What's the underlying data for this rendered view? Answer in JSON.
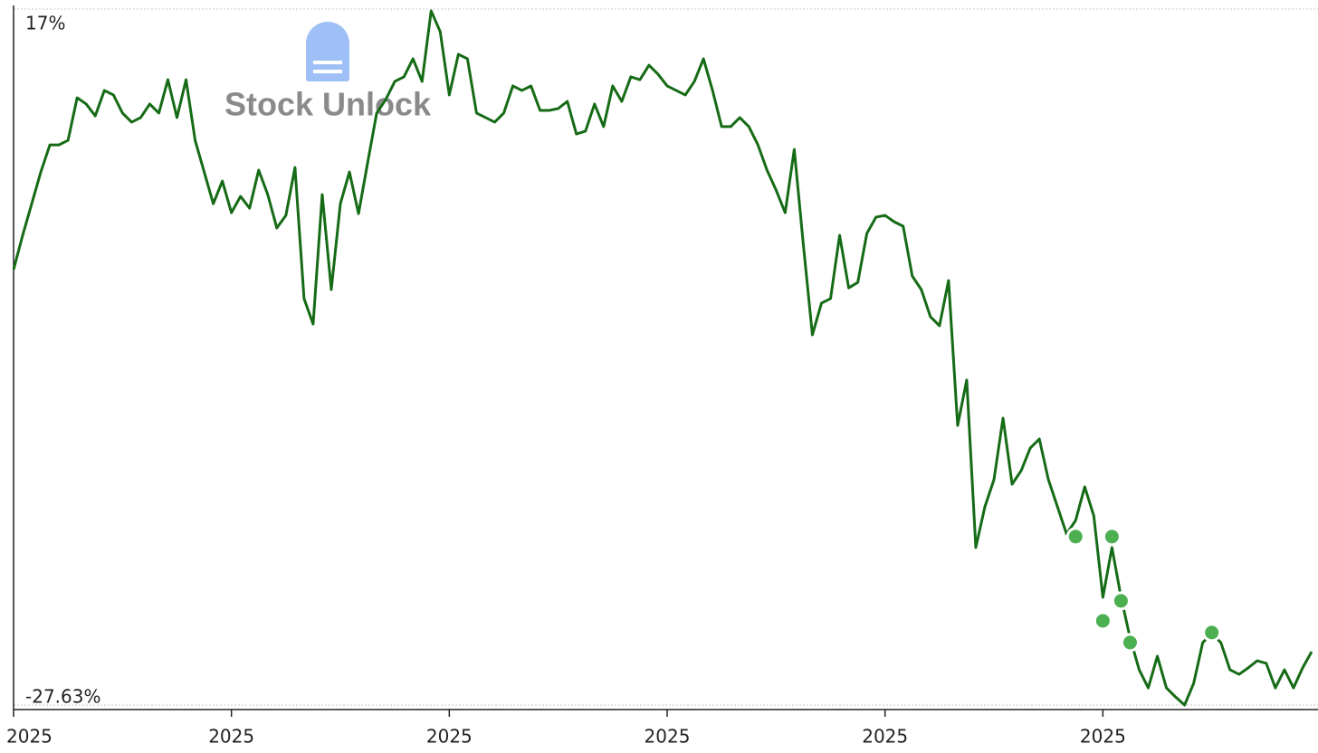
{
  "chart_data": {
    "type": "line",
    "watermark": "Stock Unlock",
    "color": "#166b16",
    "ylim": [
      -27.63,
      17
    ],
    "yticks": [
      {
        "value": 17,
        "label": "17%"
      },
      {
        "value": -27.63,
        "label": "-27.63%"
      }
    ],
    "categories": [
      "2025",
      null,
      null,
      null,
      null,
      null,
      null,
      null,
      null,
      null,
      null,
      null,
      null,
      null,
      null,
      null,
      null,
      null,
      null,
      null,
      null,
      null,
      null,
      null,
      "2025",
      null,
      null,
      null,
      null,
      null,
      null,
      null,
      null,
      null,
      null,
      null,
      null,
      null,
      null,
      null,
      null,
      null,
      null,
      null,
      null,
      null,
      null,
      null,
      "2025",
      null,
      null,
      null,
      null,
      null,
      null,
      null,
      null,
      null,
      null,
      null,
      null,
      null,
      null,
      null,
      null,
      null,
      null,
      null,
      null,
      null,
      null,
      null,
      "2025",
      null,
      null,
      null,
      null,
      null,
      null,
      null,
      null,
      null,
      null,
      null,
      null,
      null,
      null,
      null,
      null,
      null,
      null,
      null,
      null,
      null,
      null,
      null,
      "2025",
      null,
      null,
      null,
      null,
      null,
      null,
      null,
      null,
      null,
      null,
      null,
      null,
      null,
      null,
      null,
      null,
      null,
      null,
      null,
      null,
      null,
      null,
      null,
      "2025",
      null,
      null,
      null,
      null,
      null,
      null,
      null,
      null,
      null,
      null,
      null,
      null,
      null,
      null,
      null,
      null,
      null,
      null,
      null,
      null,
      null,
      null,
      null
    ],
    "values": [
      0.29,
      2.49,
      4.52,
      6.55,
      8.29,
      8.29,
      8.58,
      11.31,
      10.91,
      10.15,
      11.78,
      11.49,
      10.33,
      9.75,
      10.04,
      10.91,
      10.33,
      12.47,
      10.04,
      12.47,
      8.58,
      6.55,
      4.52,
      5.97,
      3.94,
      4.99,
      4.23,
      6.67,
      5.1,
      2.96,
      3.77,
      6.84,
      -1.57,
      -3.2,
      5.1,
      -0.99,
      4.52,
      6.55,
      3.88,
      7.13,
      10.33,
      11.2,
      12.36,
      12.65,
      13.81,
      12.36,
      16.88,
      15.55,
      11.49,
      14.1,
      13.81,
      10.33,
      10.04,
      9.75,
      10.33,
      12.07,
      11.78,
      12.07,
      10.5,
      10.5,
      10.62,
      11.08,
      8.99,
      9.17,
      10.91,
      9.46,
      12.07,
      11.08,
      12.65,
      12.47,
      13.4,
      12.82,
      12.07,
      11.78,
      11.49,
      12.36,
      13.81,
      11.78,
      9.46,
      9.46,
      10.04,
      9.46,
      8.29,
      6.67,
      5.39,
      3.94,
      8.0,
      1.91,
      -3.89,
      -1.86,
      -1.57,
      2.49,
      -0.88,
      -0.53,
      2.61,
      3.65,
      3.77,
      3.36,
      3.07,
      -0.12,
      -0.99,
      -2.73,
      -3.31,
      -0.41,
      -9.7,
      -6.79,
      -17.53,
      -14.92,
      -13.18,
      -9.23,
      -13.47,
      -12.6,
      -11.15,
      -10.57,
      -13.18,
      -14.92,
      -16.66,
      -15.79,
      -13.64,
      -15.5,
      -20.72,
      -17.53,
      -20.72,
      -23.33,
      -25.37,
      -26.53,
      -24.5,
      -26.53,
      -27.11,
      -27.63,
      -26.24,
      -23.63,
      -23.04,
      -23.63,
      -25.37,
      -25.66,
      -25.25,
      -24.79,
      -24.96,
      -26.53,
      -25.37,
      -26.53,
      -25.25,
      -24.21
    ],
    "markers": {
      "color": "#4caf50",
      "values": [
        null,
        null,
        null,
        null,
        null,
        null,
        null,
        null,
        null,
        null,
        null,
        null,
        null,
        null,
        null,
        null,
        null,
        null,
        null,
        null,
        null,
        null,
        null,
        null,
        null,
        null,
        null,
        null,
        null,
        null,
        null,
        null,
        null,
        null,
        null,
        null,
        null,
        null,
        null,
        null,
        null,
        null,
        null,
        null,
        null,
        null,
        null,
        null,
        null,
        null,
        null,
        null,
        null,
        null,
        null,
        null,
        null,
        null,
        null,
        null,
        null,
        null,
        null,
        null,
        null,
        null,
        null,
        null,
        null,
        null,
        null,
        null,
        null,
        null,
        null,
        null,
        null,
        null,
        null,
        null,
        null,
        null,
        null,
        null,
        null,
        null,
        null,
        null,
        null,
        null,
        null,
        null,
        null,
        null,
        null,
        null,
        null,
        null,
        null,
        null,
        null,
        null,
        null,
        null,
        null,
        null,
        null,
        null,
        null,
        null,
        null,
        null,
        null,
        null,
        null,
        null,
        null,
        -16.83,
        null,
        null,
        -22.23,
        -16.83,
        -20.95,
        -23.62,
        null,
        null,
        null,
        null,
        null,
        null,
        null,
        null,
        -22.98,
        null,
        null,
        null,
        null,
        null,
        null,
        null,
        null,
        null,
        null,
        null
      ]
    }
  }
}
